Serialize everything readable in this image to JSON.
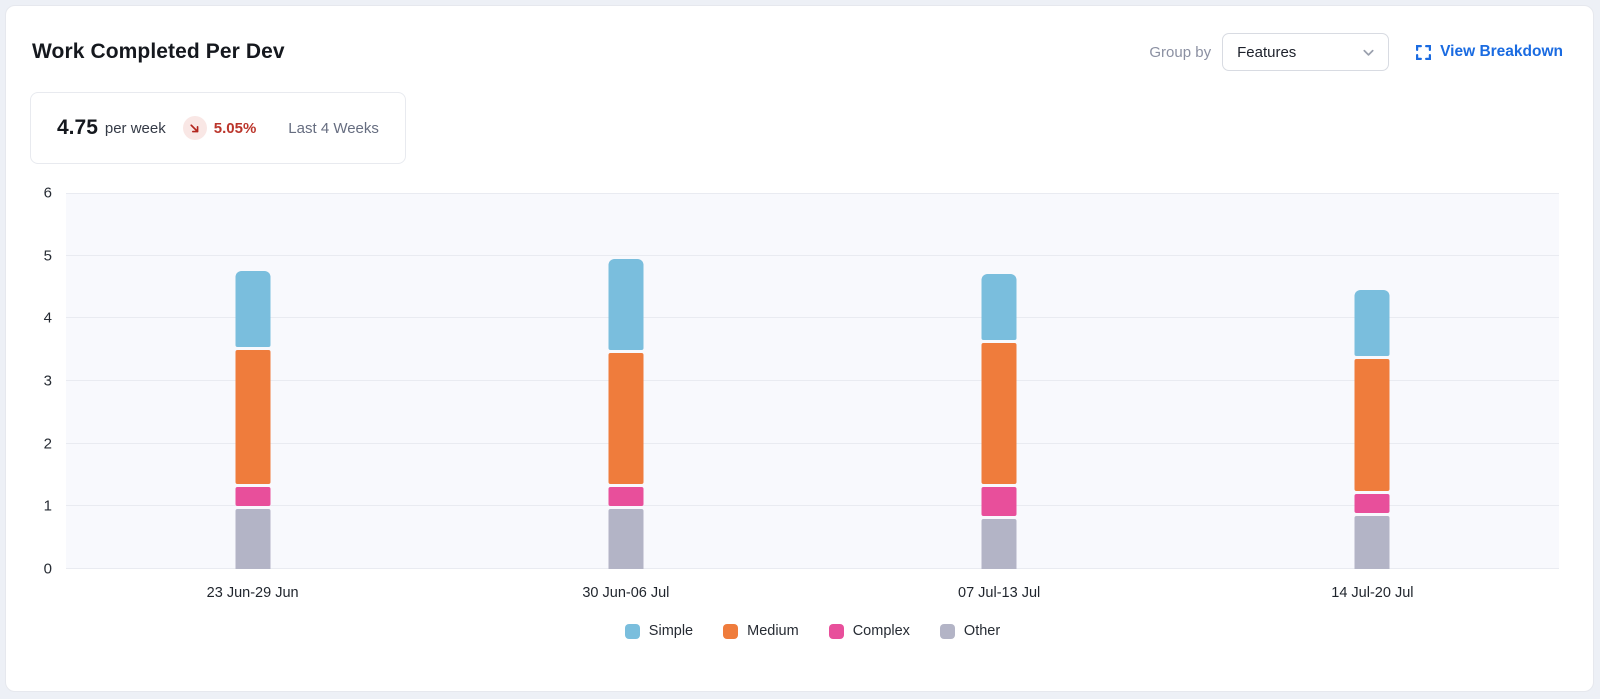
{
  "header": {
    "title": "Work Completed Per Dev",
    "group_by_label": "Group by",
    "group_by_value": "Features",
    "view_breakdown_label": "View Breakdown"
  },
  "stat": {
    "value": "4.75",
    "unit": "per week",
    "delta": "5.05%",
    "delta_direction": "down",
    "period": "Last 4 Weeks"
  },
  "chart_data": {
    "type": "bar",
    "stacked": true,
    "title": "Work Completed Per Dev",
    "categories": [
      "23 Jun-29 Jun",
      "30 Jun-06 Jul",
      "07 Jul-13 Jul",
      "14 Jul-20 Jul"
    ],
    "series": [
      {
        "name": "Simple",
        "color": "#7abedd",
        "values": [
          1.2,
          1.45,
          1.05,
          1.05
        ]
      },
      {
        "name": "Medium",
        "color": "#ef7c3c",
        "values": [
          2.2,
          2.15,
          2.3,
          2.15
        ]
      },
      {
        "name": "Complex",
        "color": "#e84f9b",
        "values": [
          0.35,
          0.35,
          0.5,
          0.35
        ]
      },
      {
        "name": "Other",
        "color": "#b3b4c6",
        "values": [
          1.0,
          1.0,
          0.85,
          0.9
        ]
      }
    ],
    "stack_order_bottom_to_top": [
      "Other",
      "Complex",
      "Medium",
      "Simple"
    ],
    "totals": [
      4.75,
      4.95,
      4.7,
      4.45
    ],
    "xlabel": "",
    "ylabel": "",
    "ylim": [
      0,
      6
    ],
    "yticks": [
      0,
      1,
      2,
      3,
      4,
      5,
      6
    ],
    "grid": true,
    "legend_position": "bottom",
    "plot_background": "#f8f9fd",
    "gridline_color": "#e9ebf1"
  },
  "colors": {
    "accent_blue": "#1a6be1",
    "negative_red": "#bb352b",
    "badge_background": "#f9e7e5",
    "muted_text": "#8b90a2"
  }
}
